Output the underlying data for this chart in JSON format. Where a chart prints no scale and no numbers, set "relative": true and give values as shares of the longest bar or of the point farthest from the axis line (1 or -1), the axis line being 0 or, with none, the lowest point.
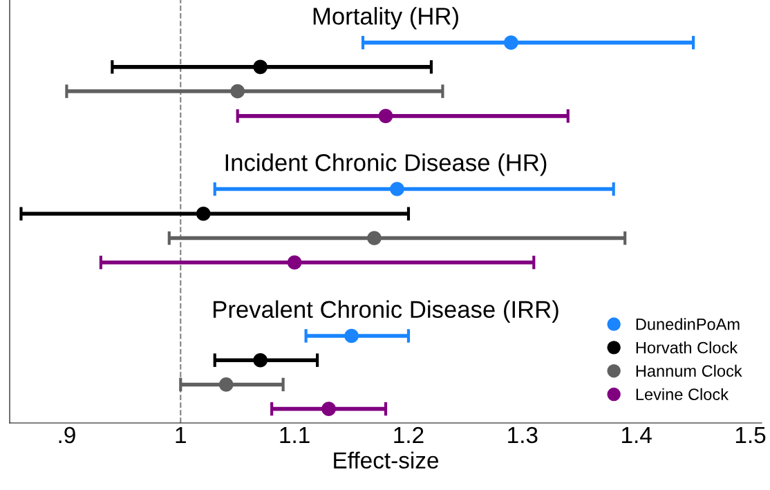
{
  "chart_data": {
    "type": "scatter",
    "xlabel": "Effect-size",
    "relative": true,
    "annotations": [
      "Mortality (HR)",
      "Incident Chronic Disease (HR)",
      "Prevalent Chronic Disease (IRR)"
    ],
    "series": [
      {
        "name": "DunedinPoAm",
        "color": "#1a85ff",
        "x": [
          1.29,
          1.19,
          1.15
        ],
        "values": [
          1,
          0.615,
          0.229
        ],
        "xerrors": [
          [
            1.16,
            1.45
          ],
          [
            1.03,
            1.38
          ],
          [
            1.11,
            1.2
          ]
        ]
      },
      {
        "name": "Horvath Clock",
        "color": "#000000",
        "x": [
          1.07,
          1.02,
          1.07
        ],
        "values": [
          0.936,
          0.55,
          0.165
        ],
        "xerrors": [
          [
            0.94,
            1.22
          ],
          [
            0.86,
            1.2
          ],
          [
            1.03,
            1.12
          ]
        ]
      },
      {
        "name": "Hannum Clock",
        "color": "#606060",
        "x": [
          1.05,
          1.17,
          1.04
        ],
        "values": [
          0.872,
          0.486,
          0.101
        ],
        "xerrors": [
          [
            0.9,
            1.23
          ],
          [
            0.99,
            1.39
          ],
          [
            1.0,
            1.09
          ]
        ]
      },
      {
        "name": "Levine Clock",
        "color": "#800080",
        "x": [
          1.18,
          1.1,
          1.13
        ],
        "values": [
          0.807,
          0.422,
          0.037
        ],
        "xerrors": [
          [
            1.05,
            1.34
          ],
          [
            0.93,
            1.31
          ],
          [
            1.08,
            1.18
          ]
        ]
      }
    ],
    "xlim": [
      0.85,
      1.51
    ],
    "xticks": [
      {
        "value": 0.9,
        "label": ".9"
      },
      1,
      1.1,
      1.2,
      1.3,
      1.4,
      1.5
    ],
    "ref_lines": [
      {
        "axis": "x",
        "value": 1,
        "color": "#808080",
        "line_style": "dashed"
      }
    ],
    "tick_labels": "x",
    "marker": "circle",
    "line_style": "solid",
    "legend": "bottom right",
    "grid": false
  }
}
